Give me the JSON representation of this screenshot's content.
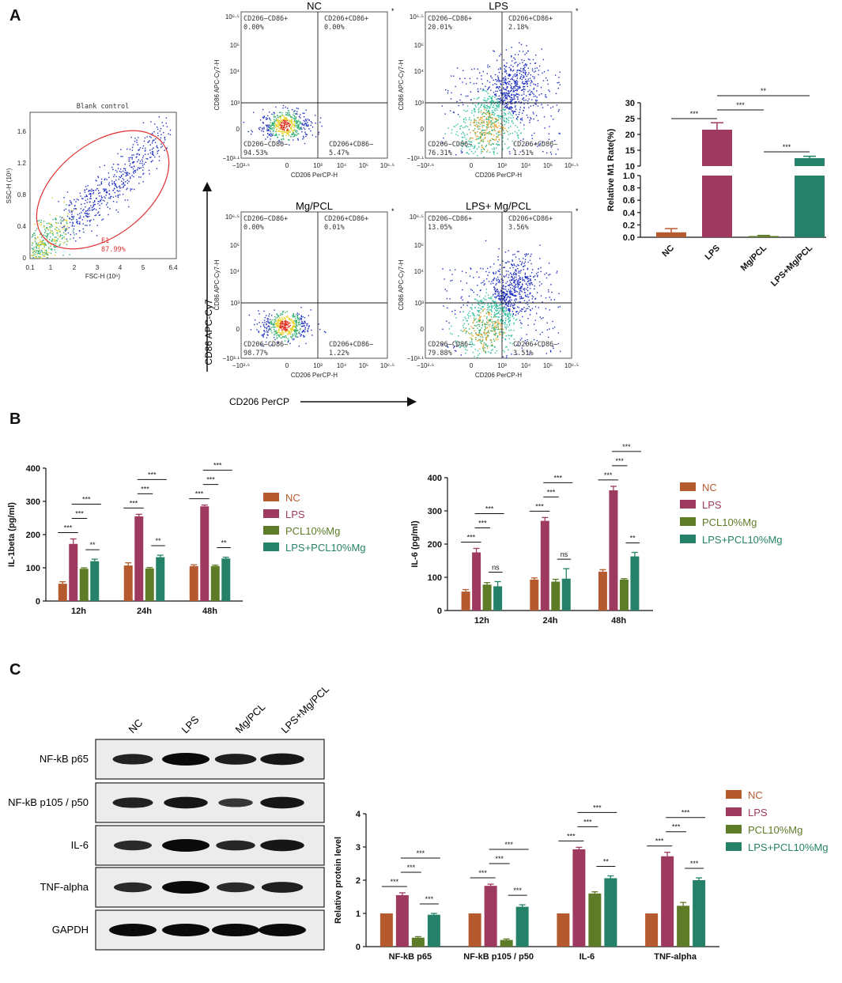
{
  "panel_labels": {
    "a": "A",
    "b": "B",
    "c": "C"
  },
  "colors": {
    "NC": "#b55a2e",
    "LPS": "#9e3a5f",
    "PCL": "#5e7b27",
    "LPSPCL": "#258268",
    "ellipse": "#e03030",
    "blank_dots": "#2030c0"
  },
  "blank_control": {
    "title": "Blank control",
    "xlabel": "FSC-H (10⁶)",
    "ylabel": "SSC-H (10⁶)",
    "x_ticks": [
      "0.1",
      "1",
      "2",
      "3",
      "4",
      "5",
      "6.4"
    ],
    "y_ticks": [
      "0",
      "0.4",
      "0.8",
      "1.2",
      "1.6"
    ],
    "gate_name": "E1",
    "gate_pct": "87.99%"
  },
  "flow_plots": [
    {
      "title": "NC",
      "q_ul": "CD206−CD86+",
      "q_ul_v": "0.00%",
      "q_ur": "CD206+CD86+",
      "q_ur_v": "0.00%",
      "q_ll": "CD206−CD86−",
      "q_ll_v": "94.53%",
      "q_lr": "CD206+CD86−",
      "q_lr_v": "5.47%",
      "star": "*"
    },
    {
      "title": "LPS",
      "q_ul": "CD206−CD86+",
      "q_ul_v": "20.01%",
      "q_ur": "CD206+CD86+",
      "q_ur_v": "2.18%",
      "q_ll": "CD206−CD86−",
      "q_ll_v": "76.31%",
      "q_lr": "CD206+CD86−",
      "q_lr_v": "1.51%",
      "star": "*"
    },
    {
      "title": "Mg/PCL",
      "q_ul": "CD206−CD86+",
      "q_ul_v": "0.00%",
      "q_ur": "CD206+CD86+",
      "q_ur_v": "0.01%",
      "q_ll": "CD206−CD86−",
      "q_ll_v": "98.77%",
      "q_lr": "CD206+CD86−",
      "q_lr_v": "1.22%",
      "star": "*"
    },
    {
      "title": "LPS+ Mg/PCL",
      "q_ul": "CD206−CD86+",
      "q_ul_v": "13.05%",
      "q_ur": "CD206+CD86+",
      "q_ur_v": "3.56%",
      "q_ll": "CD206−CD86−",
      "q_ll_v": "79.88%",
      "q_lr": "CD206+CD86−",
      "q_lr_v": "3.51%",
      "star": "*"
    }
  ],
  "flow_axes": {
    "xlabel": "CD206 PerCP-H",
    "ylabel": "CD86 APC-Cy7-H",
    "x_ticks": [
      "−10²·⁶",
      "0",
      "10³",
      "10⁴",
      "10⁵",
      "10⁶·⁵"
    ],
    "y_ticks": [
      "−10³·¹",
      "0",
      "10³",
      "10⁴",
      "10⁵",
      "10⁶·⁵"
    ]
  },
  "big_axis_labels": {
    "y": "CD86 APC-Cy7",
    "x": "CD206 PerCP"
  },
  "legend": [
    "NC",
    "LPS",
    "PCL10%Mg",
    "LPS+PCL10%Mg"
  ],
  "chart_data": [
    {
      "type": "bar",
      "id": "m1-rate",
      "categories": [
        "NC",
        "LPS",
        "Mg/PCL",
        "LPS+Mg/PCL"
      ],
      "values": [
        0.08,
        21.5,
        0.02,
        12.5
      ],
      "errors": [
        0.06,
        2.2,
        0.01,
        0.6
      ],
      "ylabel": "Relative M1 Rate(%)",
      "y_ticks_lower": [
        "0.0",
        "0.2",
        "0.4",
        "0.6",
        "0.8",
        "1.0"
      ],
      "y_ticks_upper": [
        "10",
        "15",
        "20",
        "25",
        "30"
      ],
      "axis_break": [
        1,
        10
      ],
      "sig": [
        "***",
        "***",
        "**",
        "***"
      ]
    },
    {
      "type": "bar",
      "id": "il1b",
      "categories": [
        "12h",
        "24h",
        "48h"
      ],
      "series": [
        {
          "name": "NC",
          "values": [
            52,
            107,
            105
          ],
          "errors": [
            6,
            8,
            4
          ]
        },
        {
          "name": "LPS",
          "values": [
            172,
            255,
            285
          ],
          "errors": [
            15,
            6,
            4
          ]
        },
        {
          "name": "PCL10%Mg",
          "values": [
            97,
            98,
            105
          ],
          "errors": [
            3,
            3,
            3
          ]
        },
        {
          "name": "LPS+PCL10%Mg",
          "values": [
            120,
            132,
            128
          ],
          "errors": [
            6,
            6,
            4
          ]
        }
      ],
      "ylabel": "IL-1beta (pg/ml)",
      "ylim": [
        0,
        400
      ],
      "y_ticks": [
        "0",
        "100",
        "200",
        "300",
        "400"
      ],
      "sig": [
        [
          "***",
          "***",
          "***",
          "**"
        ],
        [
          "***",
          "***",
          "***",
          "**"
        ],
        [
          "***",
          "***",
          "***",
          "**"
        ]
      ]
    },
    {
      "type": "bar",
      "id": "il6",
      "categories": [
        "12h",
        "24h",
        "48h"
      ],
      "series": [
        {
          "name": "NC",
          "values": [
            57,
            93,
            117
          ],
          "errors": [
            6,
            5,
            6
          ]
        },
        {
          "name": "LPS",
          "values": [
            175,
            270,
            362
          ],
          "errors": [
            12,
            10,
            12
          ]
        },
        {
          "name": "PCL10%Mg",
          "values": [
            78,
            87,
            93
          ],
          "errors": [
            6,
            7,
            3
          ]
        },
        {
          "name": "LPS+PCL10%Mg",
          "values": [
            73,
            96,
            163
          ],
          "errors": [
            14,
            30,
            12
          ]
        }
      ],
      "ylabel": "IL-6 (pg/ml)",
      "ylim": [
        0,
        400
      ],
      "y_ticks": [
        "0",
        "100",
        "200",
        "300",
        "400"
      ],
      "sig": [
        [
          "***",
          "***",
          "***",
          "ns"
        ],
        [
          "***",
          "***",
          "***",
          "ns"
        ],
        [
          "***",
          "***",
          "***",
          "**"
        ]
      ]
    },
    {
      "type": "bar",
      "id": "protein",
      "categories": [
        "NF-kB p65",
        "NF-kB p105 / p50",
        "IL-6",
        "TNF-alpha"
      ],
      "series": [
        {
          "name": "NC",
          "values": [
            1,
            1,
            1,
            1
          ],
          "errors": [
            0,
            0,
            0,
            0
          ]
        },
        {
          "name": "LPS",
          "values": [
            1.55,
            1.83,
            2.93,
            2.72
          ],
          "errors": [
            0.07,
            0.05,
            0.06,
            0.12
          ]
        },
        {
          "name": "PCL10%Mg",
          "values": [
            0.27,
            0.2,
            1.6,
            1.23
          ],
          "errors": [
            0.03,
            0.03,
            0.05,
            0.1
          ]
        },
        {
          "name": "LPS+PCL10%Mg",
          "values": [
            0.96,
            1.2,
            2.06,
            2.0
          ],
          "errors": [
            0.04,
            0.06,
            0.07,
            0.07
          ]
        }
      ],
      "ylabel": "Relative protein level",
      "ylim": [
        0,
        4
      ],
      "y_ticks": [
        "0",
        "1",
        "2",
        "3",
        "4"
      ],
      "sig": [
        [
          "***",
          "***",
          "***",
          "***"
        ],
        [
          "***",
          "***",
          "***",
          "***"
        ],
        [
          "***",
          "***",
          "***",
          "**"
        ],
        [
          "***",
          "***",
          "***",
          "***"
        ]
      ]
    }
  ],
  "western": {
    "lanes": [
      "NC",
      "LPS",
      "Mg/PCL",
      "LPS+Mg/PCL"
    ],
    "rows": [
      "NF-kB p65",
      "NF-kB p105 / p50",
      "IL-6",
      "TNF-alpha",
      "GAPDH"
    ],
    "intensity": [
      [
        0.7,
        1.0,
        0.75,
        0.85
      ],
      [
        0.7,
        0.85,
        0.45,
        0.85
      ],
      [
        0.6,
        1.0,
        0.65,
        0.85
      ],
      [
        0.6,
        1.0,
        0.6,
        0.75
      ],
      [
        1.0,
        1.0,
        1.0,
        1.0
      ]
    ]
  }
}
